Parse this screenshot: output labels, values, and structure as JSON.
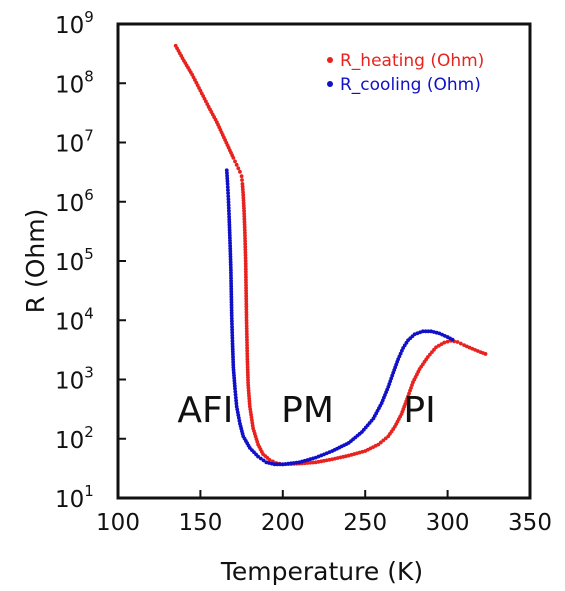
{
  "chart_data": {
    "type": "scatter",
    "title": "",
    "xlabel": "Temperature (K)",
    "ylabel": "R (Ohm)",
    "xlim": [
      100,
      350
    ],
    "ylim_log10": [
      1,
      9
    ],
    "yscale": "log",
    "x_ticks": [
      "100",
      "150",
      "200",
      "250",
      "300",
      "350"
    ],
    "y_ticks": [
      {
        "base": "10",
        "exp": "1"
      },
      {
        "base": "10",
        "exp": "2"
      },
      {
        "base": "10",
        "exp": "3"
      },
      {
        "base": "10",
        "exp": "4"
      },
      {
        "base": "10",
        "exp": "5"
      },
      {
        "base": "10",
        "exp": "6"
      },
      {
        "base": "10",
        "exp": "7"
      },
      {
        "base": "10",
        "exp": "8"
      },
      {
        "base": "10",
        "exp": "9"
      }
    ],
    "legend_position": "top-right",
    "grid": false,
    "regions": [
      {
        "label": "AFI",
        "x": 153
      },
      {
        "label": "PM",
        "x": 215
      },
      {
        "label": "PI",
        "x": 283
      }
    ],
    "series": [
      {
        "name": "R_heating (Ohm)",
        "color": "#e8231f",
        "points": [
          [
            135,
            430000000
          ],
          [
            140,
            240000000
          ],
          [
            145,
            140000000
          ],
          [
            150,
            75000000
          ],
          [
            155,
            40000000
          ],
          [
            160,
            22000000
          ],
          [
            165,
            11000000
          ],
          [
            170,
            5500000
          ],
          [
            172,
            4200000
          ],
          [
            174,
            3200000
          ],
          [
            175,
            2700000
          ],
          [
            175.5,
            2000000
          ],
          [
            176,
            1300000
          ],
          [
            176.5,
            700000
          ],
          [
            177,
            300000
          ],
          [
            177.5,
            90000
          ],
          [
            178,
            10000
          ],
          [
            178.5,
            2200
          ],
          [
            179,
            800
          ],
          [
            180,
            350
          ],
          [
            182,
            150
          ],
          [
            185,
            80
          ],
          [
            188,
            55
          ],
          [
            192,
            44
          ],
          [
            196,
            39
          ],
          [
            200,
            37
          ],
          [
            210,
            38
          ],
          [
            220,
            40
          ],
          [
            230,
            45
          ],
          [
            240,
            52
          ],
          [
            250,
            62
          ],
          [
            258,
            80
          ],
          [
            264,
            110
          ],
          [
            268,
            160
          ],
          [
            272,
            260
          ],
          [
            276,
            520
          ],
          [
            279,
            900
          ],
          [
            283,
            1500
          ],
          [
            288,
            2400
          ],
          [
            293,
            3500
          ],
          [
            298,
            4200
          ],
          [
            302,
            4500
          ],
          [
            306,
            4300
          ],
          [
            310,
            3800
          ],
          [
            315,
            3300
          ],
          [
            320,
            2900
          ],
          [
            323,
            2700
          ]
        ]
      },
      {
        "name": "R_cooling (Ohm)",
        "color": "#1010c8",
        "points": [
          [
            166,
            3400000
          ],
          [
            166.5,
            2000000
          ],
          [
            167,
            1100000
          ],
          [
            167.5,
            500000
          ],
          [
            168,
            200000
          ],
          [
            168.5,
            70000
          ],
          [
            169,
            12000
          ],
          [
            169.5,
            4000
          ],
          [
            170,
            1600
          ],
          [
            171,
            700
          ],
          [
            172,
            350
          ],
          [
            174,
            180
          ],
          [
            176,
            110
          ],
          [
            180,
            70
          ],
          [
            185,
            50
          ],
          [
            190,
            40
          ],
          [
            195,
            37
          ],
          [
            200,
            37
          ],
          [
            210,
            40
          ],
          [
            220,
            48
          ],
          [
            230,
            62
          ],
          [
            240,
            85
          ],
          [
            248,
            130
          ],
          [
            255,
            220
          ],
          [
            260,
            400
          ],
          [
            264,
            750
          ],
          [
            267,
            1300
          ],
          [
            270,
            2200
          ],
          [
            273,
            3400
          ],
          [
            276,
            4600
          ],
          [
            280,
            5800
          ],
          [
            285,
            6500
          ],
          [
            290,
            6500
          ],
          [
            295,
            6000
          ],
          [
            300,
            5200
          ],
          [
            303,
            4700
          ]
        ]
      }
    ]
  }
}
